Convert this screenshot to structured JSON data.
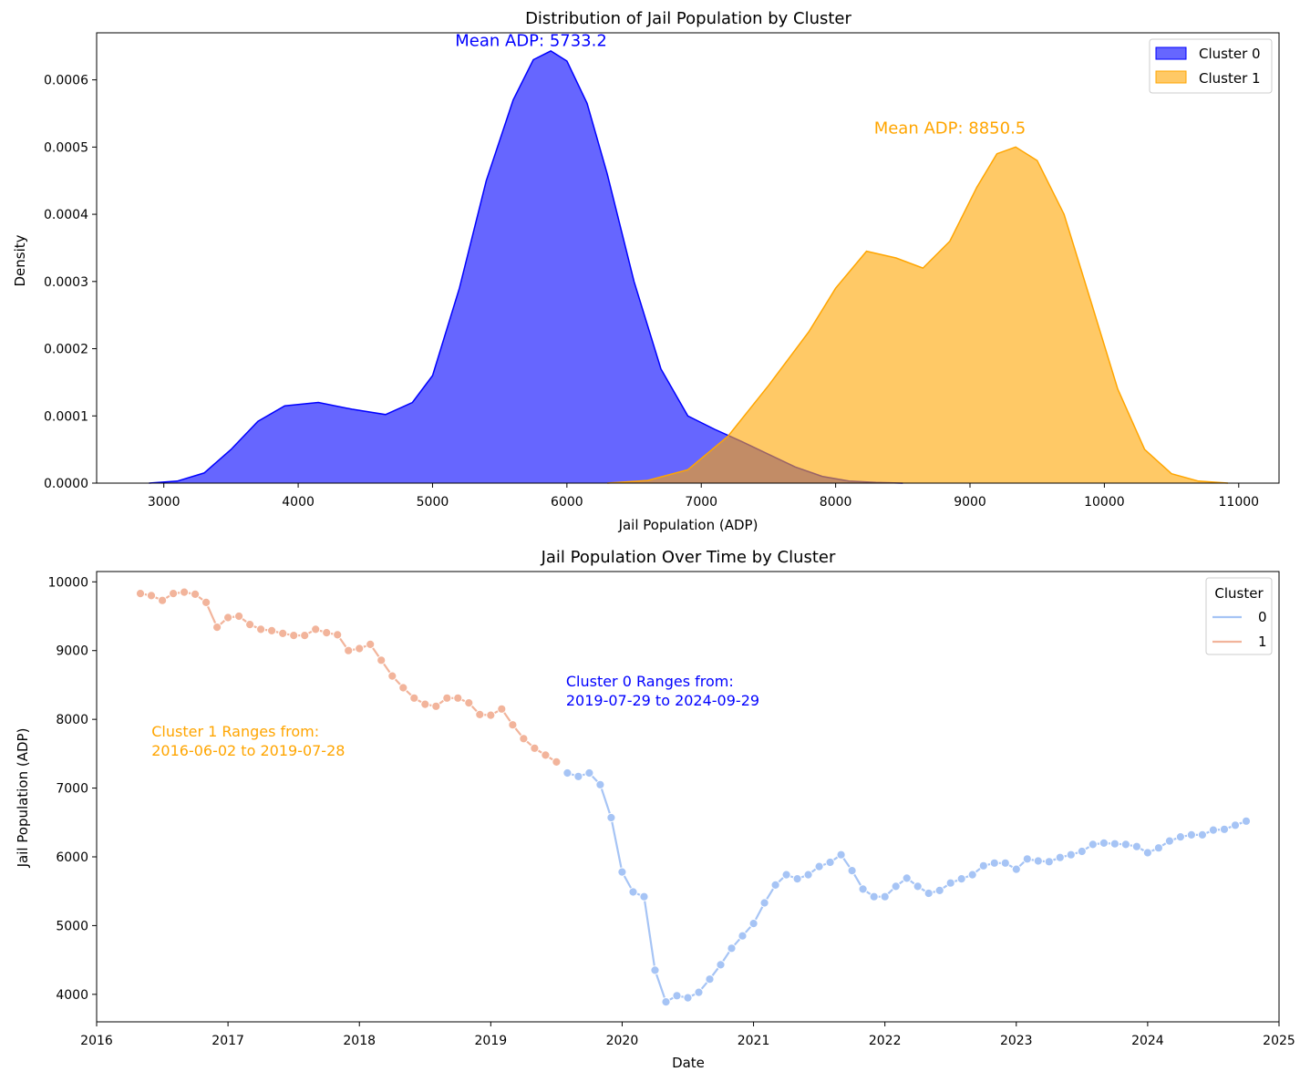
{
  "colors": {
    "cluster0_kde": "#0000ff",
    "cluster1_kde": "#ffa500",
    "cluster0_line": "#a6c4f5",
    "cluster1_line": "#f2b49b",
    "text": "#000000"
  },
  "chart_data": [
    {
      "type": "area",
      "title": "Distribution of Jail Population by Cluster",
      "xlabel": "Jail Population (ADP)",
      "ylabel": "Density",
      "xlim": [
        2500,
        11300
      ],
      "ylim": [
        0,
        0.00067
      ],
      "xticks": [
        3000,
        4000,
        5000,
        6000,
        7000,
        8000,
        9000,
        10000,
        11000
      ],
      "xtick_labels": [
        "3000",
        "4000",
        "5000",
        "6000",
        "7000",
        "8000",
        "9000",
        "10000",
        "11000"
      ],
      "yticks": [
        0,
        0.0001,
        0.0002,
        0.0003,
        0.0004,
        0.0005,
        0.0006
      ],
      "ytick_labels": [
        "0.0000",
        "0.0001",
        "0.0002",
        "0.0003",
        "0.0004",
        "0.0005",
        "0.0006"
      ],
      "legend_position": "top-right",
      "series": [
        {
          "name": "Cluster 0",
          "color": "#0000ff",
          "x": [
            2890,
            3100,
            3300,
            3500,
            3700,
            3900,
            4150,
            4400,
            4650,
            4850,
            5000,
            5200,
            5400,
            5600,
            5750,
            5880,
            6000,
            6150,
            6300,
            6500,
            6700,
            6900,
            7100,
            7300,
            7500,
            7700,
            7900,
            8100,
            8300,
            8500
          ],
          "y": [
            0.0,
            3e-06,
            1.5e-05,
            5e-05,
            9.2e-05,
            0.000115,
            0.00012,
            0.00011,
            0.000102,
            0.00012,
            0.00016,
            0.00029,
            0.00045,
            0.00057,
            0.00063,
            0.000643,
            0.000628,
            0.000565,
            0.00046,
            0.0003,
            0.00017,
            0.0001,
            8e-05,
            6.2e-05,
            4.3e-05,
            2.4e-05,
            1e-05,
            3e-06,
            1e-06,
            0.0
          ]
        },
        {
          "name": "Cluster 1",
          "color": "#ffa500",
          "x": [
            6300,
            6600,
            6900,
            7200,
            7500,
            7800,
            8000,
            8230,
            8450,
            8650,
            8850,
            9050,
            9200,
            9340,
            9500,
            9700,
            9900,
            10100,
            10300,
            10500,
            10700,
            10920
          ],
          "y": [
            0.0,
            4e-06,
            2e-05,
            7e-05,
            0.000145,
            0.000225,
            0.00029,
            0.000345,
            0.000335,
            0.00032,
            0.00036,
            0.00044,
            0.00049,
            0.0005,
            0.00048,
            0.0004,
            0.00027,
            0.00014,
            5e-05,
            1.4e-05,
            3e-06,
            0.0
          ]
        }
      ],
      "annotations": [
        {
          "text": "Mean ADP: 5733.2",
          "x": 5733.2,
          "y": 0.00065,
          "color": "#0000ff"
        },
        {
          "text": "Mean ADP: 8850.5",
          "x": 8850.5,
          "y": 0.00052,
          "color": "#ffa500"
        }
      ]
    },
    {
      "type": "line",
      "title": "Jail Population Over Time by Cluster",
      "xlabel": "Date",
      "ylabel": "Jail Population (ADP)",
      "xlim": [
        "2016-01-01",
        "2025-01-01"
      ],
      "ylim": [
        3600,
        10150
      ],
      "xticks": [
        "2016-01-01",
        "2017-01-01",
        "2018-01-01",
        "2019-01-01",
        "2020-01-01",
        "2021-01-01",
        "2022-01-01",
        "2023-01-01",
        "2024-01-01",
        "2025-01-01"
      ],
      "xtick_labels": [
        "2016",
        "2017",
        "2018",
        "2019",
        "2020",
        "2021",
        "2022",
        "2023",
        "2024",
        "2025"
      ],
      "yticks": [
        4000,
        5000,
        6000,
        7000,
        8000,
        9000,
        10000
      ],
      "ytick_labels": [
        "4000",
        "5000",
        "6000",
        "7000",
        "8000",
        "9000",
        "10000"
      ],
      "legend_title": "Cluster",
      "legend_position": "top-right",
      "series": [
        {
          "name": "1",
          "color": "#f2b49b",
          "start": "2016-05",
          "values": [
            9830,
            9800,
            9730,
            9830,
            9850,
            9820,
            9700,
            9340,
            9480,
            9500,
            9380,
            9310,
            9290,
            9250,
            9220,
            9220,
            9310,
            9260,
            9230,
            9000,
            9030,
            9090,
            8860,
            8630,
            8460,
            8310,
            8220,
            8190,
            8310,
            8310,
            8240,
            8070,
            8060,
            8150,
            7920,
            7720,
            7580,
            7480,
            7380
          ]
        },
        {
          "name": "0",
          "color": "#a6c4f5",
          "start": "2019-08",
          "values": [
            7220,
            7170,
            7220,
            7050,
            6570,
            5780,
            5490,
            5420,
            4350,
            3890,
            3980,
            3950,
            4030,
            4220,
            4430,
            4670,
            4850,
            5030,
            5330,
            5590,
            5740,
            5680,
            5740,
            5860,
            5920,
            6030,
            5800,
            5530,
            5420,
            5420,
            5570,
            5690,
            5570,
            5470,
            5510,
            5620,
            5680,
            5740,
            5870,
            5910,
            5910,
            5820,
            5970,
            5940,
            5930,
            5990,
            6030,
            6080,
            6180,
            6200,
            6190,
            6180,
            6150,
            6060,
            6130,
            6230,
            6290,
            6320,
            6320,
            6390,
            6400,
            6460,
            6520
          ]
        }
      ],
      "annotations": [
        {
          "lines": [
            "Cluster 1 Ranges from:",
            "2016-06-02 to 2019-07-28"
          ],
          "x": "2016-06-02",
          "y": 7750,
          "color": "#ffa500"
        },
        {
          "lines": [
            "Cluster 0 Ranges from:",
            "2019-07-29 to 2024-09-29"
          ],
          "x": "2019-07-29",
          "y": 8480,
          "color": "#0000ff"
        }
      ]
    }
  ]
}
